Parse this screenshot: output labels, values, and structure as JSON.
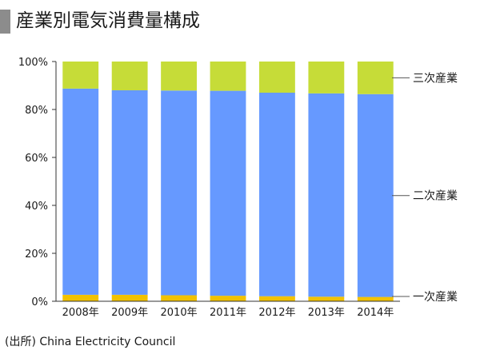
{
  "title": "産業別電気消費量構成",
  "source": "(出所) China Electricity Council",
  "colors": {
    "primary": "#f2c200",
    "secondary": "#6699ff",
    "tertiary": "#c6dc38"
  },
  "chart_data": {
    "type": "bar",
    "stacked": true,
    "title": "産業別電気消費量構成",
    "xlabel": "",
    "ylabel": "",
    "categories": [
      "2008年",
      "2009年",
      "2010年",
      "2011年",
      "2012年",
      "2013年",
      "2014年"
    ],
    "ylim": [
      0,
      100
    ],
    "yticks": [
      "0%",
      "20%",
      "40%",
      "60%",
      "80%",
      "100%"
    ],
    "grid": false,
    "legend_position": "right",
    "series": [
      {
        "name": "一次産業",
        "color": "#f2c200",
        "values": [
          2.7,
          2.7,
          2.5,
          2.3,
          2.1,
          1.9,
          1.8
        ]
      },
      {
        "name": "二次産業",
        "color": "#6699ff",
        "values": [
          86.0,
          85.3,
          85.4,
          85.5,
          84.9,
          84.8,
          84.6
        ]
      },
      {
        "name": "三次産業",
        "color": "#c6dc38",
        "values": [
          11.3,
          12.0,
          12.1,
          12.2,
          13.0,
          13.3,
          13.6
        ]
      }
    ]
  }
}
